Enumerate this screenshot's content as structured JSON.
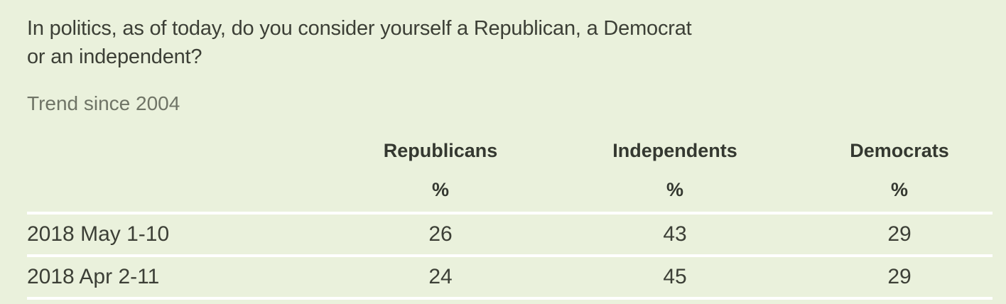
{
  "panel": {
    "question_lines": [
      "In politics, as of today, do you consider yourself a Republican, a Democrat",
      "or an independent?"
    ],
    "trend_label": "Trend since 2004"
  },
  "colors": {
    "background": "#eaf1dc",
    "text_dark": "#3c3f36",
    "text_gray": "#6f7466",
    "divider": "#ffffff"
  },
  "table": {
    "columns": [
      {
        "label": "Republicans",
        "unit": "%"
      },
      {
        "label": "Independents",
        "unit": "%"
      },
      {
        "label": "Democrats",
        "unit": "%"
      }
    ],
    "rows": [
      {
        "label": "2018 May 1-10",
        "values": [
          "26",
          "43",
          "29"
        ]
      },
      {
        "label": "2018 Apr 2-11",
        "values": [
          "24",
          "45",
          "29"
        ]
      }
    ]
  },
  "chart_data": {
    "type": "table",
    "title": "In politics, as of today, do you consider yourself a Republican, a Democrat or an independent?",
    "subtitle": "Trend since 2004",
    "categories": [
      "2018 May 1-10",
      "2018 Apr 2-11"
    ],
    "series": [
      {
        "name": "Republicans",
        "values": [
          26,
          24
        ]
      },
      {
        "name": "Independents",
        "values": [
          43,
          45
        ]
      },
      {
        "name": "Democrats",
        "values": [
          29,
          29
        ]
      }
    ],
    "unit": "%",
    "layout": {
      "legend_position": "column-headers",
      "grid": "horizontal-white-dividers"
    }
  }
}
